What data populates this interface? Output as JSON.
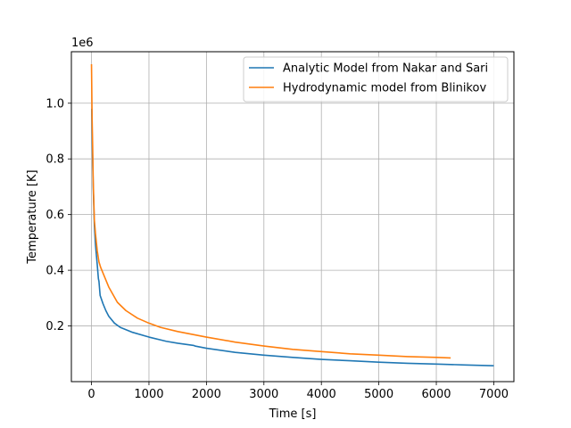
{
  "chart_data": {
    "type": "line",
    "xlabel": "Time [s]",
    "ylabel": "Temperature [K]",
    "y_offset_label": "1e6",
    "xlim": [
      -350,
      7350
    ],
    "ylim": [
      0,
      1.185
    ],
    "x_ticks": [
      0,
      1000,
      2000,
      3000,
      4000,
      5000,
      6000,
      7000
    ],
    "x_tick_labels": [
      "0",
      "1000",
      "2000",
      "3000",
      "4000",
      "5000",
      "6000",
      "7000"
    ],
    "y_ticks": [
      0.2,
      0.4,
      0.6,
      0.8,
      1.0
    ],
    "y_tick_labels": [
      "0.2",
      "0.4",
      "0.6",
      "0.8",
      "1.0"
    ],
    "grid": true,
    "legend_position": "top-right",
    "series": [
      {
        "name": "Analytic Model from Nakar and Sari",
        "color": "#1f77b4",
        "x": [
          5,
          10,
          20,
          30,
          50,
          70,
          100,
          120,
          130,
          150,
          200,
          250,
          300,
          400,
          500,
          700,
          1000,
          1300,
          1500,
          1780,
          1800,
          2000,
          2500,
          3000,
          3500,
          4000,
          4500,
          5000,
          5500,
          6000,
          6500,
          7000
        ],
        "y": [
          0.98,
          0.9,
          0.8,
          0.7,
          0.56,
          0.49,
          0.42,
          0.37,
          0.36,
          0.31,
          0.28,
          0.255,
          0.235,
          0.21,
          0.195,
          0.178,
          0.16,
          0.145,
          0.138,
          0.13,
          0.128,
          0.12,
          0.105,
          0.095,
          0.087,
          0.08,
          0.075,
          0.07,
          0.066,
          0.063,
          0.06,
          0.057
        ]
      },
      {
        "name": "Hydrodynamic model from Blinikov",
        "color": "#ff7f0e",
        "x": [
          0,
          10,
          20,
          30,
          50,
          70,
          100,
          130,
          160,
          200,
          300,
          450,
          600,
          800,
          1000,
          1200,
          1500,
          1800,
          2000,
          2500,
          3000,
          3500,
          4000,
          4500,
          5000,
          5500,
          6000,
          6250
        ],
        "y": [
          1.14,
          0.95,
          0.85,
          0.72,
          0.58,
          0.53,
          0.47,
          0.43,
          0.41,
          0.39,
          0.34,
          0.285,
          0.255,
          0.228,
          0.21,
          0.195,
          0.18,
          0.168,
          0.16,
          0.142,
          0.128,
          0.116,
          0.108,
          0.1,
          0.095,
          0.09,
          0.087,
          0.085
        ]
      }
    ]
  }
}
